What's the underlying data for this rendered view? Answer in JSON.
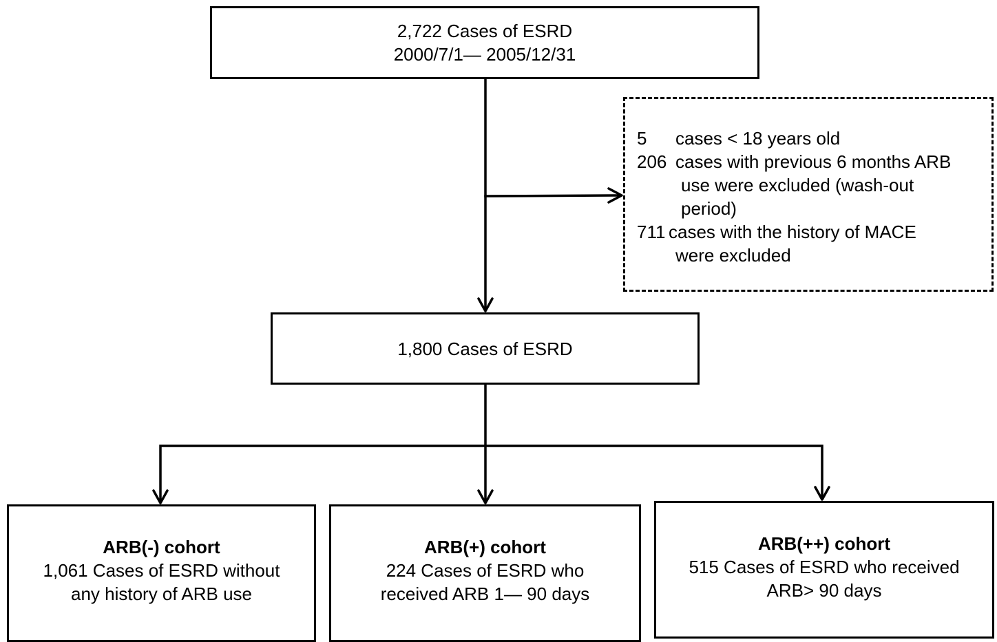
{
  "top_box": {
    "line1": "2,722 Cases of ESRD",
    "line2": "2000/7/1— 2005/12/31"
  },
  "exclusion_box": {
    "items": [
      {
        "number": "5",
        "lines": [
          "cases < 18 years old"
        ]
      },
      {
        "number": "206",
        "lines": [
          "cases with previous 6 months ARB",
          "use  were  excluded (wash-out",
          "period)"
        ]
      },
      {
        "number": "711",
        "lines": [
          "cases with the history of MACE",
          "were excluded"
        ]
      }
    ]
  },
  "middle_box": {
    "text": "1,800 Cases of ESRD"
  },
  "cohorts": [
    {
      "title": "ARB(-) cohort",
      "line1": "1,061 Cases of ESRD without",
      "line2": "any history of ARB use"
    },
    {
      "title": "ARB(+) cohort",
      "line1": "224 Cases of ESRD who",
      "line2": "received ARB 1— 90 days"
    },
    {
      "title": "ARB(++) cohort",
      "line1": "515 Cases of ESRD who received",
      "line2": "ARB> 90 days"
    }
  ]
}
